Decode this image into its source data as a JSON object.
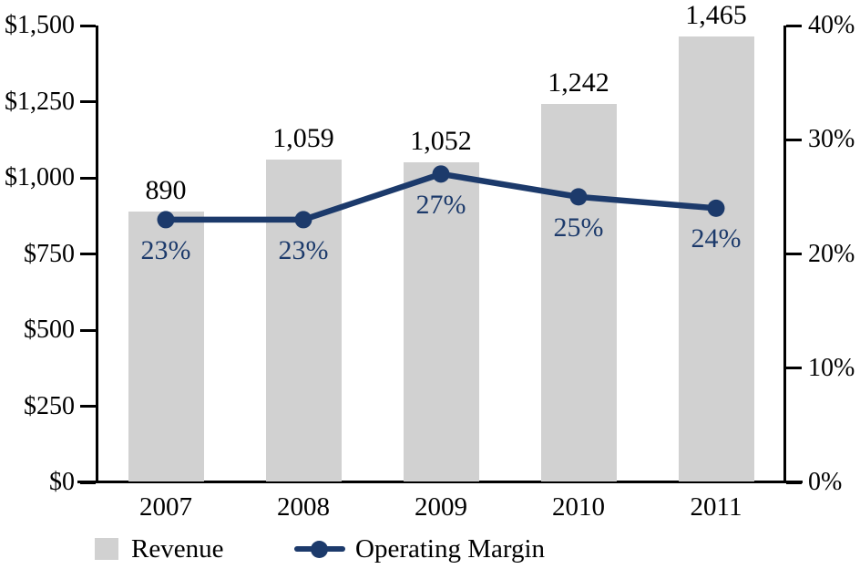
{
  "chart_data": {
    "type": "combo",
    "title": "",
    "categories": [
      "2007",
      "2008",
      "2009",
      "2010",
      "2011"
    ],
    "series": [
      {
        "name": "Revenue",
        "type": "bar",
        "axis": "left",
        "values": [
          890,
          1059,
          1052,
          1242,
          1465
        ],
        "value_labels": [
          "890",
          "1,059",
          "1,052",
          "1,242",
          "1,465"
        ]
      },
      {
        "name": "Operating Margin",
        "type": "line",
        "axis": "right",
        "values": [
          23,
          23,
          27,
          25,
          24
        ],
        "value_labels": [
          "23%",
          "23%",
          "27%",
          "25%",
          "24%"
        ]
      }
    ],
    "left_axis": {
      "range": [
        0,
        1500
      ],
      "ticks": [
        {
          "value": 1500,
          "label": "$1,500"
        },
        {
          "value": 1250,
          "label": "$1,250"
        },
        {
          "value": 1000,
          "label": "$1,000"
        },
        {
          "value": 750,
          "label": "$750"
        },
        {
          "value": 500,
          "label": "$500"
        },
        {
          "value": 250,
          "label": "$250"
        },
        {
          "value": 0,
          "label": "$0"
        }
      ]
    },
    "right_axis": {
      "range": [
        0,
        40
      ],
      "ticks": [
        {
          "value": 40,
          "label": "40%"
        },
        {
          "value": 30,
          "label": "30%"
        },
        {
          "value": 20,
          "label": "20%"
        },
        {
          "value": 10,
          "label": "10%"
        },
        {
          "value": 0,
          "label": "0%"
        }
      ]
    },
    "legend": [
      {
        "label": "Revenue",
        "marker": "bar-swatch"
      },
      {
        "label": "Operating Margin",
        "marker": "line-dot"
      }
    ],
    "grid": false,
    "legend_position": "bottom",
    "colors": {
      "bar": "#d1d1d1",
      "line": "#1c3a6b",
      "percent_label": "#1c3a6b",
      "value_label": "#000000",
      "axis": "#000000"
    }
  }
}
